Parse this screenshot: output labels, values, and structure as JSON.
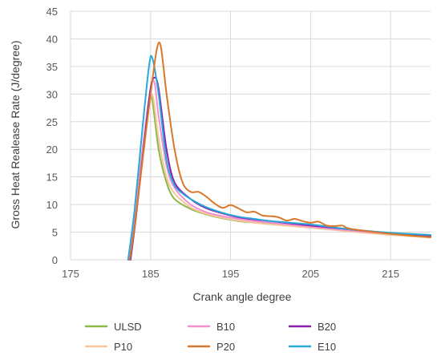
{
  "chart_data": {
    "type": "line",
    "title": "",
    "xlabel": "Crank angle degree",
    "ylabel": "Gross Heat Realease Rate (J/degree)",
    "xlim": [
      175,
      220
    ],
    "ylim": [
      0,
      45
    ],
    "xticks": [
      175,
      185,
      195,
      205,
      215
    ],
    "yticks": [
      0,
      5,
      10,
      15,
      20,
      25,
      30,
      35,
      40,
      45
    ],
    "grid": true,
    "legend_position": "bottom",
    "series": [
      {
        "name": "ULSD",
        "color": "#8db94a",
        "points": [
          [
            182.3,
            0
          ],
          [
            183,
            8
          ],
          [
            184,
            20
          ],
          [
            184.8,
            29
          ],
          [
            185.2,
            29
          ],
          [
            186,
            20
          ],
          [
            187,
            14
          ],
          [
            188,
            11
          ],
          [
            190,
            9.2
          ],
          [
            192,
            8.2
          ],
          [
            194,
            7.5
          ],
          [
            196,
            7.0
          ],
          [
            198,
            6.7
          ],
          [
            200,
            6.5
          ],
          [
            205,
            5.9
          ],
          [
            210,
            5.2
          ],
          [
            215,
            4.7
          ],
          [
            220,
            4.3
          ]
        ]
      },
      {
        "name": "B10",
        "color": "#f48fd0",
        "points": [
          [
            182.4,
            0
          ],
          [
            183,
            7
          ],
          [
            184,
            20
          ],
          [
            185,
            31
          ],
          [
            185.5,
            32
          ],
          [
            186,
            26
          ],
          [
            187,
            17
          ],
          [
            188,
            13
          ],
          [
            190,
            10
          ],
          [
            192,
            8.6
          ],
          [
            194,
            7.9
          ],
          [
            196,
            7.4
          ],
          [
            198,
            7.0
          ],
          [
            200,
            6.7
          ],
          [
            205,
            6.0
          ],
          [
            210,
            5.3
          ],
          [
            215,
            4.7
          ],
          [
            220,
            4.2
          ]
        ]
      },
      {
        "name": "B20",
        "color": "#8a1fb0",
        "points": [
          [
            182.5,
            0
          ],
          [
            183.2,
            8
          ],
          [
            184.2,
            21
          ],
          [
            185,
            31
          ],
          [
            185.5,
            33
          ],
          [
            186,
            31
          ],
          [
            187,
            20
          ],
          [
            188,
            14
          ],
          [
            190,
            11
          ],
          [
            192,
            9.3
          ],
          [
            194,
            8.4
          ],
          [
            196,
            7.7
          ],
          [
            198,
            7.3
          ],
          [
            200,
            7.0
          ],
          [
            205,
            6.2
          ],
          [
            210,
            5.5
          ],
          [
            215,
            4.8
          ],
          [
            220,
            4.2
          ]
        ]
      },
      {
        "name": "P10",
        "color": "#f5c89a",
        "points": [
          [
            182.4,
            0
          ],
          [
            183,
            7
          ],
          [
            184,
            19
          ],
          [
            184.8,
            28
          ],
          [
            185.3,
            29.5
          ],
          [
            186,
            22
          ],
          [
            187,
            15
          ],
          [
            188,
            12
          ],
          [
            190,
            9.5
          ],
          [
            192,
            8.3
          ],
          [
            194,
            7.6
          ],
          [
            196,
            7.1
          ],
          [
            198,
            6.7
          ],
          [
            200,
            6.4
          ],
          [
            205,
            5.8
          ],
          [
            210,
            5.1
          ],
          [
            215,
            4.5
          ],
          [
            220,
            4.0
          ]
        ]
      },
      {
        "name": "P20",
        "color": "#d9772a",
        "points": [
          [
            182.4,
            0
          ],
          [
            183,
            6
          ],
          [
            184,
            18
          ],
          [
            185,
            30
          ],
          [
            185.8,
            38.3
          ],
          [
            186.3,
            38.5
          ],
          [
            187,
            30
          ],
          [
            188,
            20
          ],
          [
            189,
            14
          ],
          [
            190,
            12.3
          ],
          [
            191,
            12.3
          ],
          [
            192,
            11.4
          ],
          [
            193,
            10.2
          ],
          [
            194,
            9.4
          ],
          [
            195,
            9.9
          ],
          [
            196,
            9.3
          ],
          [
            197,
            8.6
          ],
          [
            198,
            8.7
          ],
          [
            199,
            8.0
          ],
          [
            200,
            7.9
          ],
          [
            201,
            7.7
          ],
          [
            202,
            7.1
          ],
          [
            203,
            7.4
          ],
          [
            204,
            7.0
          ],
          [
            205,
            6.7
          ],
          [
            206,
            6.9
          ],
          [
            207,
            6.2
          ],
          [
            208,
            6.1
          ],
          [
            209,
            6.2
          ],
          [
            210,
            5.6
          ],
          [
            215,
            4.7
          ],
          [
            220,
            4.1
          ]
        ]
      },
      {
        "name": "E10",
        "color": "#2aa8d8",
        "points": [
          [
            182.2,
            0
          ],
          [
            183,
            9
          ],
          [
            184,
            24
          ],
          [
            184.8,
            35
          ],
          [
            185.2,
            36.6
          ],
          [
            186,
            30
          ],
          [
            187,
            18
          ],
          [
            188,
            13.5
          ],
          [
            189,
            12
          ],
          [
            190,
            11
          ],
          [
            192,
            9.5
          ],
          [
            194,
            8.5
          ],
          [
            196,
            7.8
          ],
          [
            198,
            7.4
          ],
          [
            200,
            7.0
          ],
          [
            205,
            6.4
          ],
          [
            210,
            5.5
          ],
          [
            215,
            4.9
          ],
          [
            220,
            4.5
          ]
        ]
      }
    ]
  }
}
